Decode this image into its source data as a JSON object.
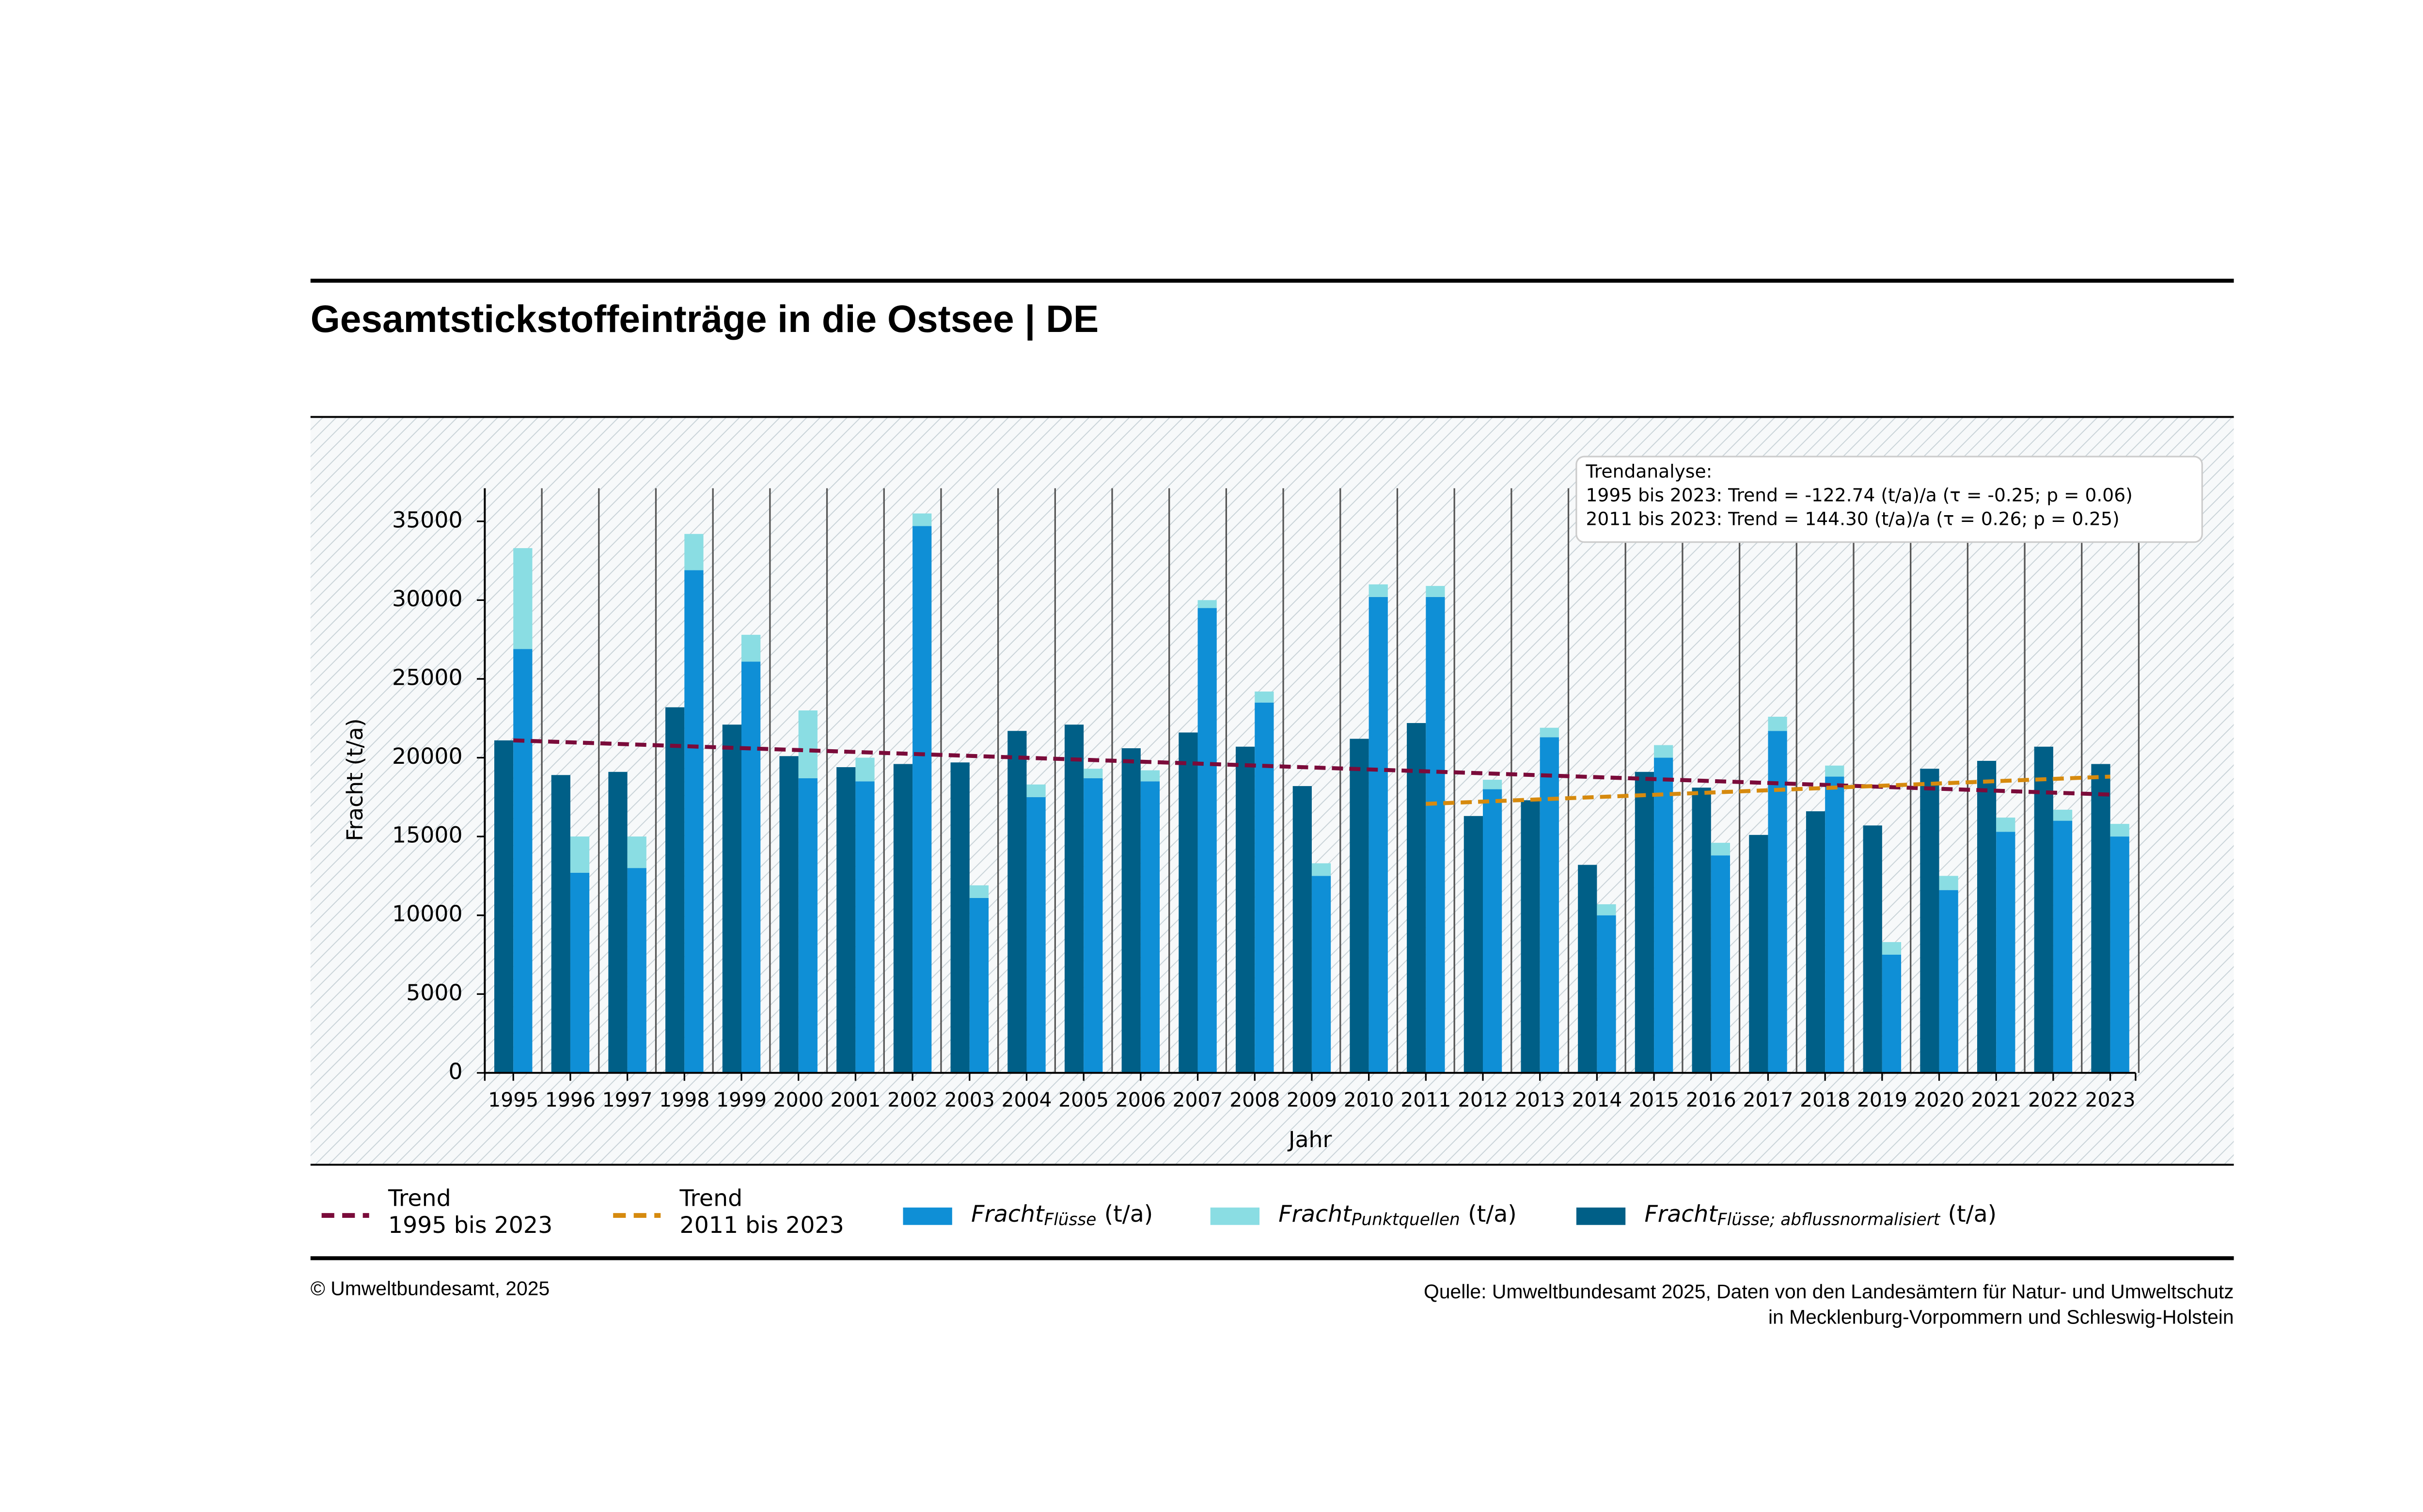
{
  "chart_data": {
    "type": "bar",
    "title": "Gesamtstickstoffeinträge in die Ostsee | DE",
    "x_label": "Jahr",
    "y_label": "Fracht (t/a)",
    "categories": [
      "1995",
      "1996",
      "1997",
      "1998",
      "1999",
      "2000",
      "2001",
      "2002",
      "2003",
      "2004",
      "2005",
      "2006",
      "2007",
      "2008",
      "2009",
      "2010",
      "2011",
      "2012",
      "2013",
      "2014",
      "2015",
      "2016",
      "2017",
      "2018",
      "2019",
      "2020",
      "2021",
      "2022",
      "2023"
    ],
    "series": [
      {
        "name": "Fracht",
        "subscript": "Flüsse",
        "unit": "(t/a)",
        "color": "#0f8fd6",
        "values": [
          26900,
          12700,
          13000,
          31900,
          26100,
          18700,
          18500,
          34700,
          11100,
          17500,
          18700,
          18500,
          29500,
          23500,
          12500,
          30200,
          30200,
          18000,
          21300,
          10000,
          20000,
          13800,
          21700,
          18800,
          7500,
          11600,
          15300,
          16000,
          15000
        ]
      },
      {
        "name": "Fracht",
        "subscript": "Punktquellen",
        "unit": "(t/a)",
        "color": "#8adde3",
        "values": [
          6400,
          2300,
          2000,
          2300,
          1700,
          4300,
          1500,
          800,
          800,
          800,
          600,
          700,
          500,
          700,
          800,
          800,
          700,
          600,
          600,
          700,
          800,
          800,
          900,
          700,
          800,
          900,
          900,
          700,
          800
        ]
      },
      {
        "name": "Fracht",
        "subscript": "Flüsse; abflussnormalisiert",
        "unit": "(t/a)",
        "color": "#005f87",
        "values": [
          21100,
          18900,
          19100,
          23200,
          22100,
          20100,
          19400,
          19600,
          19700,
          21700,
          22100,
          20600,
          21600,
          20700,
          18200,
          21200,
          22200,
          16300,
          17300,
          13200,
          19100,
          18100,
          15100,
          16600,
          15700,
          19300,
          19800,
          20700,
          19600
        ]
      }
    ],
    "trend_lines": [
      {
        "name": [
          "Trend",
          "1995 bis 2023"
        ],
        "color": "#7a0b3a",
        "x": [
          1995,
          2023
        ],
        "values": [
          21100,
          17660
        ]
      },
      {
        "name": [
          "Trend",
          "2011 bis 2023"
        ],
        "color": "#d68a0e",
        "x": [
          2011,
          2023
        ],
        "values": [
          17070,
          18800
        ]
      }
    ],
    "annotation": [
      "Trendanalyse:",
      "1995 bis 2023: Trend = -122.74 (t/a)/a (τ = -0.25; p = 0.06)",
      "2011 bis 2023: Trend =  144.30 (t/a)/a (τ = 0.26; p = 0.25)"
    ],
    "ylim": [
      0,
      37100
    ],
    "yticks": [
      0,
      5000,
      10000,
      15000,
      20000,
      25000,
      30000,
      35000
    ],
    "grid": true,
    "copyright": "© Umweltbundesamt, 2025",
    "source": [
      "Quelle: Umweltbundesamt 2025, Daten von den Landesämtern für Natur- und Umweltschutz",
      "in Mecklenburg-Vorpommern und Schleswig-Holstein"
    ]
  }
}
